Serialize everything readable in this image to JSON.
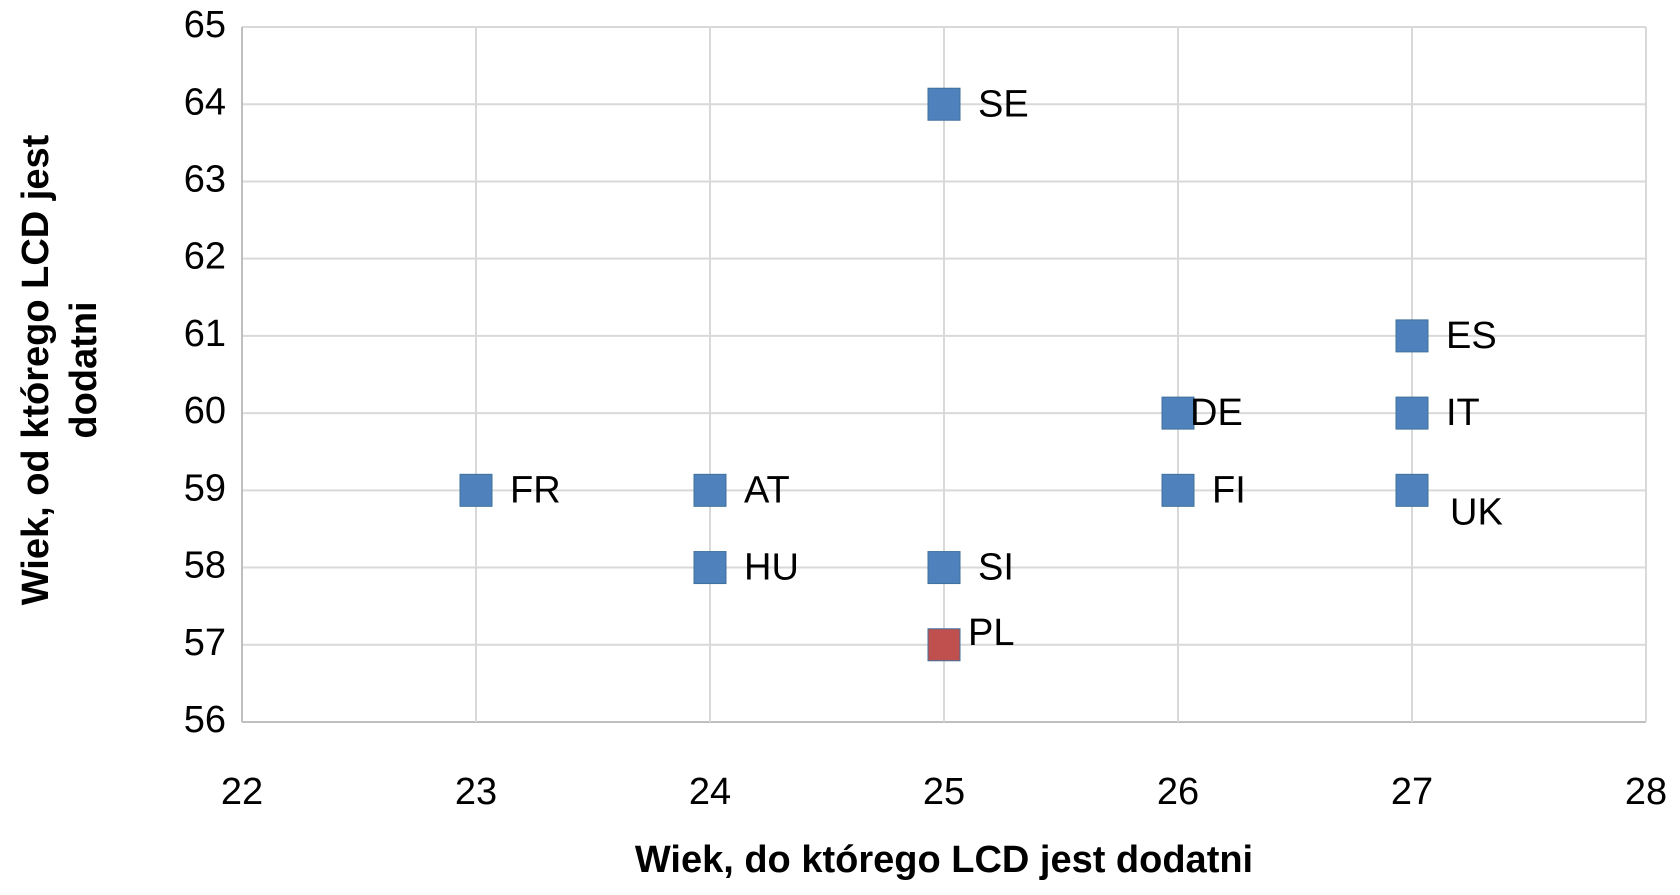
{
  "chart_data": {
    "type": "scatter",
    "xlabel": "Wiek, do którego LCD jest dodatni",
    "ylabel": [
      "Wiek, od którego LCD jest",
      "dodatni"
    ],
    "x": [
      25,
      27,
      26,
      27,
      23,
      24,
      26,
      27,
      24,
      25,
      25
    ],
    "values": [
      64,
      61,
      60,
      60,
      59,
      59,
      59,
      59,
      58,
      58,
      57
    ],
    "point_labels": [
      "SE",
      "ES",
      "DE",
      "IT",
      "FR",
      "AT",
      "FI",
      "UK",
      "HU",
      "SI",
      "PL"
    ],
    "colors": [
      "#4f81bd",
      "#4f81bd",
      "#4f81bd",
      "#4f81bd",
      "#4f81bd",
      "#4f81bd",
      "#4f81bd",
      "#4f81bd",
      "#4f81bd",
      "#4f81bd",
      "#c0504d"
    ],
    "xlim": [
      22,
      28
    ],
    "xticks": [
      22,
      23,
      24,
      25,
      26,
      27,
      28
    ],
    "ylim": [
      56,
      65
    ],
    "yticks": [
      56,
      57,
      58,
      59,
      60,
      61,
      62,
      63,
      64,
      65
    ],
    "grid": true
  }
}
